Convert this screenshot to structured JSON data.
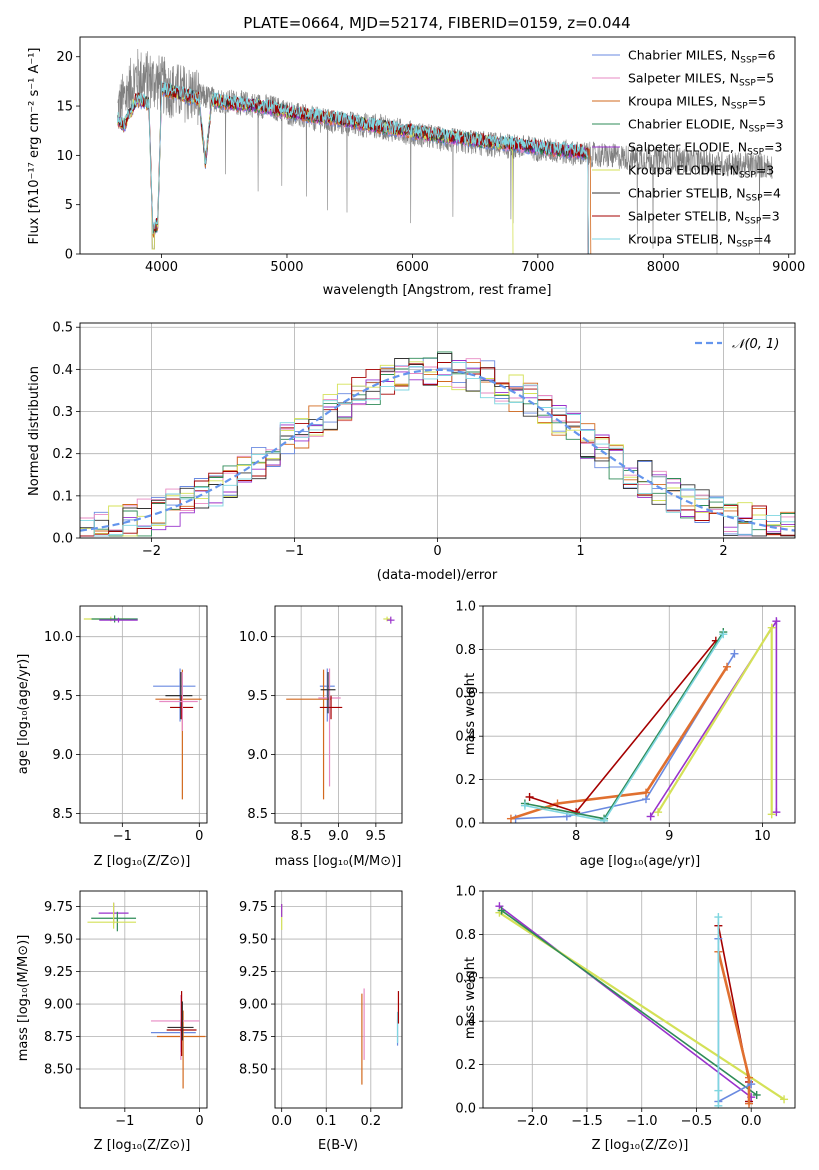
{
  "chart_data": [
    {
      "id": "spectrum",
      "type": "line",
      "title": "PLATE=0664, MJD=52174, FIBERID=0159, z=0.044",
      "xlabel": "wavelength [Angstrom, rest frame]",
      "ylabel": "Flux [fλ10⁻¹⁷ erg cm⁻² s⁻¹ A⁻¹]",
      "xlim": [
        3350,
        9050
      ],
      "ylim": [
        0,
        22
      ],
      "xticks": [
        4000,
        5000,
        6000,
        7000,
        8000,
        9000
      ],
      "yticks": [
        0,
        5,
        10,
        15,
        20
      ],
      "grid": false,
      "legend_position": "top-right",
      "observed_spectrum": {
        "color": "#808080",
        "x": [
          3650,
          3800,
          3950,
          4100,
          4300,
          4500,
          4700,
          4900,
          5100,
          5300,
          5500,
          5700,
          5900,
          6100,
          6300,
          6500,
          6700,
          6900,
          7100,
          7300,
          7500,
          7700,
          7900,
          8100,
          8300,
          8500,
          8700,
          8870
        ],
        "y": [
          14.5,
          18.0,
          17.5,
          16.5,
          16.0,
          15.5,
          15.2,
          14.8,
          14.0,
          13.5,
          13.2,
          13.0,
          12.5,
          12.0,
          11.5,
          11.3,
          11.0,
          10.8,
          10.5,
          10.2,
          10.0,
          9.8,
          9.6,
          9.5,
          9.3,
          9.1,
          9.0,
          8.9
        ]
      },
      "model_x": [
        3650,
        3700,
        3800,
        3900,
        3930,
        3970,
        4000,
        4100,
        4200,
        4300,
        4350,
        4400,
        4600,
        4800,
        4900,
        5000,
        5200,
        5400,
        5600,
        5800,
        6000,
        6200,
        6400,
        6600,
        6800,
        7000,
        7200,
        7400
      ],
      "model_y": [
        13.5,
        12.8,
        15.5,
        15.0,
        2.0,
        3.0,
        16.5,
        16.2,
        15.8,
        15.5,
        9.0,
        15.4,
        15.0,
        14.8,
        14.5,
        14.2,
        13.8,
        13.5,
        13.0,
        12.6,
        12.2,
        11.8,
        11.5,
        11.2,
        10.9,
        10.6,
        10.3,
        10.1
      ],
      "series": [
        {
          "name": "Chabrier MILES, N<sub>SSP</sub>=6",
          "color": "#6a8ae0"
        },
        {
          "name": "Salpeter MILES, N<sub>SSP</sub>=5",
          "color": "#e78ac3"
        },
        {
          "name": "Kroupa MILES, N<sub>SSP</sub>=5",
          "color": "#d2691e"
        },
        {
          "name": "Chabrier ELODIE, N<sub>SSP</sub>=3",
          "color": "#2e8b57"
        },
        {
          "name": "Salpeter ELODIE, N<sub>SSP</sub>=3",
          "color": "#9932cc"
        },
        {
          "name": "Kroupa ELODIE, N<sub>SSP</sub>=3",
          "color": "#d4e157"
        },
        {
          "name": "Chabrier STELIB, N<sub>SSP</sub>=4",
          "color": "#333333"
        },
        {
          "name": "Salpeter STELIB, N<sub>SSP</sub>=3",
          "color": "#a50000"
        },
        {
          "name": "Kroupa STELIB, N<sub>SSP</sub>=4",
          "color": "#7fd6e0"
        }
      ]
    },
    {
      "id": "residuals",
      "type": "line",
      "xlabel": "(data-model)/error",
      "ylabel": "Normed distribution",
      "xlim": [
        -2.5,
        2.5
      ],
      "ylim": [
        0,
        0.51
      ],
      "xticks": [
        -2,
        -1,
        0,
        1,
        2
      ],
      "yticks": [
        0.0,
        0.1,
        0.2,
        0.3,
        0.4,
        0.5
      ],
      "grid": true,
      "legend_position": "top-right",
      "reference": {
        "name": "𝒩(0, 1)",
        "color": "#6495ed",
        "mean": 0,
        "sigma": 1
      },
      "histogram_bins": [
        -2.5,
        2.5,
        0.1
      ]
    },
    {
      "id": "age_vs_Z",
      "type": "scatter",
      "xlabel": "Z [log₁₀(Z/Z⊙)]",
      "ylabel": "age  [log₁₀(age/yr)]",
      "xlim": [
        -1.55,
        0.1
      ],
      "ylim": [
        8.42,
        10.26
      ],
      "xticks": [
        -1,
        0
      ],
      "yticks": [
        8.5,
        9.0,
        9.5,
        10.0
      ],
      "grid": true,
      "points": [
        {
          "x": -1.15,
          "y": 10.15,
          "xerr": [
            0.35,
            0.25
          ],
          "yerr": [
            0.02,
            0.02
          ],
          "color": "#d4e157"
        },
        {
          "x": -1.1,
          "y": 10.15,
          "xerr": [
            0.3,
            0.3
          ],
          "yerr": [
            0.03,
            0.03
          ],
          "color": "#2e8b57"
        },
        {
          "x": -1.05,
          "y": 10.14,
          "xerr": [
            0.25,
            0.25
          ],
          "yerr": [
            0.02,
            0.02
          ],
          "color": "#9932cc"
        },
        {
          "x": -0.25,
          "y": 9.58,
          "xerr": [
            0.35,
            0.2
          ],
          "yerr": [
            0.3,
            0.15
          ],
          "color": "#6a8ae0"
        },
        {
          "x": -0.22,
          "y": 9.47,
          "xerr": [
            0.35,
            0.25
          ],
          "yerr": [
            0.85,
            0.25
          ],
          "color": "#d2691e"
        },
        {
          "x": -0.24,
          "y": 9.5,
          "xerr": [
            0.2,
            0.15
          ],
          "yerr": [
            0.2,
            0.2
          ],
          "color": "#333333"
        },
        {
          "x": -0.23,
          "y": 9.4,
          "xerr": [
            0.15,
            0.15
          ],
          "yerr": [
            0.1,
            0.1
          ],
          "color": "#a50000"
        },
        {
          "x": -0.22,
          "y": 9.45,
          "xerr": [
            0.3,
            0.2
          ],
          "yerr": [
            0.25,
            0.25
          ],
          "color": "#e78ac3"
        }
      ]
    },
    {
      "id": "age_vs_mass",
      "type": "scatter",
      "xlabel": "mass [log₁₀(M/M⊙)]",
      "xlim": [
        8.15,
        9.85
      ],
      "ylim": [
        8.42,
        10.26
      ],
      "xticks": [
        8.5,
        9.0,
        9.5
      ],
      "yticks": [
        8.5,
        9.0,
        9.5,
        10.0
      ],
      "grid": true,
      "points": [
        {
          "x": 9.65,
          "y": 10.15,
          "xerr": [
            0.05,
            0.05
          ],
          "yerr": [
            0.02,
            0.02
          ],
          "color": "#d4e157"
        },
        {
          "x": 9.7,
          "y": 10.14,
          "xerr": [
            0.05,
            0.05
          ],
          "yerr": [
            0.03,
            0.03
          ],
          "color": "#9932cc"
        },
        {
          "x": 8.85,
          "y": 9.58,
          "xerr": [
            0.1,
            0.1
          ],
          "yerr": [
            0.3,
            0.15
          ],
          "color": "#6a8ae0"
        },
        {
          "x": 8.8,
          "y": 9.47,
          "xerr": [
            0.5,
            0.1
          ],
          "yerr": [
            0.85,
            0.25
          ],
          "color": "#d2691e"
        },
        {
          "x": 8.88,
          "y": 9.48,
          "xerr": [
            0.15,
            0.15
          ],
          "yerr": [
            0.75,
            0.25
          ],
          "color": "#e78ac3"
        },
        {
          "x": 8.9,
          "y": 9.4,
          "xerr": [
            0.15,
            0.15
          ],
          "yerr": [
            0.1,
            0.1
          ],
          "color": "#a50000"
        },
        {
          "x": 8.86,
          "y": 9.55,
          "xerr": [
            0.1,
            0.1
          ],
          "yerr": [
            0.2,
            0.15
          ],
          "color": "#333333"
        }
      ]
    },
    {
      "id": "weight_vs_age",
      "type": "line",
      "xlabel": "age  [log₁₀(age/yr)]",
      "ylabel": "mass weight",
      "xlim": [
        7.0,
        10.35
      ],
      "ylim": [
        0,
        1.0
      ],
      "xticks": [
        8,
        9,
        10
      ],
      "yticks": [
        0.0,
        0.2,
        0.4,
        0.6,
        0.8,
        1.0
      ],
      "grid": true,
      "series": [
        {
          "color": "#6a8ae0",
          "x": [
            7.35,
            7.9,
            8.75,
            9.7
          ],
          "y": [
            0.02,
            0.03,
            0.11,
            0.78
          ]
        },
        {
          "color": "#e07030",
          "x": [
            7.3,
            7.8,
            8.75,
            9.62
          ],
          "y": [
            0.02,
            0.09,
            0.14,
            0.72
          ]
        },
        {
          "color": "#a50000",
          "x": [
            7.5,
            8.0,
            9.5
          ],
          "y": [
            0.12,
            0.05,
            0.84
          ]
        },
        {
          "color": "#2e8b57",
          "x": [
            7.45,
            8.3,
            9.58
          ],
          "y": [
            0.09,
            0.02,
            0.88
          ]
        },
        {
          "color": "#7fd6e0",
          "x": [
            7.45,
            8.3,
            9.58
          ],
          "y": [
            0.08,
            0.01,
            0.87
          ]
        },
        {
          "color": "#9932cc",
          "x": [
            8.8,
            10.15,
            10.15
          ],
          "y": [
            0.03,
            0.93,
            0.05
          ]
        },
        {
          "color": "#d4e157",
          "x": [
            8.88,
            10.1,
            10.1
          ],
          "y": [
            0.05,
            0.9,
            0.04
          ]
        }
      ]
    },
    {
      "id": "mass_vs_Z",
      "type": "scatter",
      "xlabel": "Z [log₁₀(Z/Z⊙)]",
      "ylabel": "mass [log₁₀(M/M⊙)]",
      "xlim": [
        -1.6,
        0.1
      ],
      "ylim": [
        8.2,
        9.87
      ],
      "xticks": [
        -1,
        0
      ],
      "yticks": [
        8.5,
        8.75,
        9.0,
        9.25,
        9.5,
        9.75
      ],
      "grid": true,
      "points": [
        {
          "x": -1.15,
          "y": 9.7,
          "xerr": [
            0.2,
            0.2
          ],
          "yerr": [
            0.08,
            0.08
          ],
          "color": "#9932cc"
        },
        {
          "x": -1.1,
          "y": 9.66,
          "xerr": [
            0.35,
            0.25
          ],
          "yerr": [
            0.1,
            0.05
          ],
          "color": "#2e8b57"
        },
        {
          "x": -1.15,
          "y": 9.63,
          "xerr": [
            0.35,
            0.3
          ],
          "yerr": [
            0.05,
            0.15
          ],
          "color": "#d4e157"
        },
        {
          "x": -0.25,
          "y": 8.78,
          "xerr": [
            0.4,
            0.2
          ],
          "yerr": [
            0.15,
            0.1
          ],
          "color": "#6a8ae0"
        },
        {
          "x": -0.22,
          "y": 8.75,
          "xerr": [
            0.35,
            0.3
          ],
          "yerr": [
            0.4,
            0.2
          ],
          "color": "#d2691e"
        },
        {
          "x": -0.25,
          "y": 8.87,
          "xerr": [
            0.4,
            0.25
          ],
          "yerr": [
            0.3,
            0.2
          ],
          "color": "#e78ac3"
        },
        {
          "x": -0.24,
          "y": 8.8,
          "xerr": [
            0.2,
            0.2
          ],
          "yerr": [
            0.2,
            0.3
          ],
          "color": "#a50000"
        },
        {
          "x": -0.23,
          "y": 8.82,
          "xerr": [
            0.2,
            0.15
          ],
          "yerr": [
            0.1,
            0.2
          ],
          "color": "#333333"
        }
      ]
    },
    {
      "id": "mass_vs_ebv",
      "type": "scatter",
      "xlabel": "E(B-V)",
      "xlim": [
        -0.015,
        0.27
      ],
      "ylim": [
        8.2,
        9.87
      ],
      "xticks": [
        0.0,
        0.1,
        0.2
      ],
      "yticks": [
        8.5,
        8.75,
        9.0,
        9.25,
        9.5,
        9.75
      ],
      "grid": true,
      "points": [
        {
          "x": 0.0,
          "y": 9.67,
          "yerr": [
            0.1,
            0.1
          ],
          "color": "#d4e157"
        },
        {
          "x": 0.0,
          "y": 9.72,
          "yerr": [
            0.05,
            0.05
          ],
          "color": "#9932cc"
        },
        {
          "x": 0.18,
          "y": 8.78,
          "yerr": [
            0.4,
            0.3
          ],
          "color": "#d2691e"
        },
        {
          "x": 0.185,
          "y": 8.87,
          "yerr": [
            0.3,
            0.25
          ],
          "color": "#e78ac3"
        },
        {
          "x": 0.26,
          "y": 8.78,
          "yerr": [
            0.1,
            0.1
          ],
          "color": "#6a8ae0"
        },
        {
          "x": 0.26,
          "y": 8.82,
          "yerr": [
            0.12,
            0.12
          ],
          "color": "#7fd6e0"
        },
        {
          "x": 0.262,
          "y": 8.95,
          "yerr": [
            0.1,
            0.15
          ],
          "color": "#a50000"
        }
      ]
    },
    {
      "id": "weight_vs_Z",
      "type": "line",
      "xlabel": "Z [log₁₀(Z/Z⊙)]",
      "ylabel": "mass weight",
      "xlim": [
        -2.45,
        0.4
      ],
      "ylim": [
        0,
        1.0
      ],
      "xticks": [
        -2.0,
        -1.5,
        -1.0,
        -0.5,
        0.0
      ],
      "yticks": [
        0.0,
        0.2,
        0.4,
        0.6,
        0.8,
        1.0
      ],
      "grid": true,
      "series": [
        {
          "color": "#9932cc",
          "x": [
            -2.3,
            0.0
          ],
          "y": [
            0.93,
            0.05
          ]
        },
        {
          "color": "#d4e157",
          "x": [
            -2.3,
            0.3
          ],
          "y": [
            0.9,
            0.04
          ]
        },
        {
          "color": "#2e8b57",
          "x": [
            -2.28,
            0.05
          ],
          "y": [
            0.91,
            0.06
          ]
        },
        {
          "color": "#a50000",
          "x": [
            -0.3,
            -0.02,
            -0.02
          ],
          "y": [
            0.84,
            0.12,
            0.03
          ]
        },
        {
          "color": "#e07030",
          "x": [
            -0.3,
            -0.02,
            -0.02
          ],
          "y": [
            0.72,
            0.14,
            0.02
          ]
        },
        {
          "color": "#6a8ae0",
          "x": [
            -0.3,
            -0.3,
            0.0
          ],
          "y": [
            0.78,
            0.03,
            0.11
          ]
        },
        {
          "color": "#7fd6e0",
          "x": [
            -0.3,
            -0.3,
            -0.3
          ],
          "y": [
            0.88,
            0.08,
            0.01
          ]
        }
      ]
    }
  ]
}
